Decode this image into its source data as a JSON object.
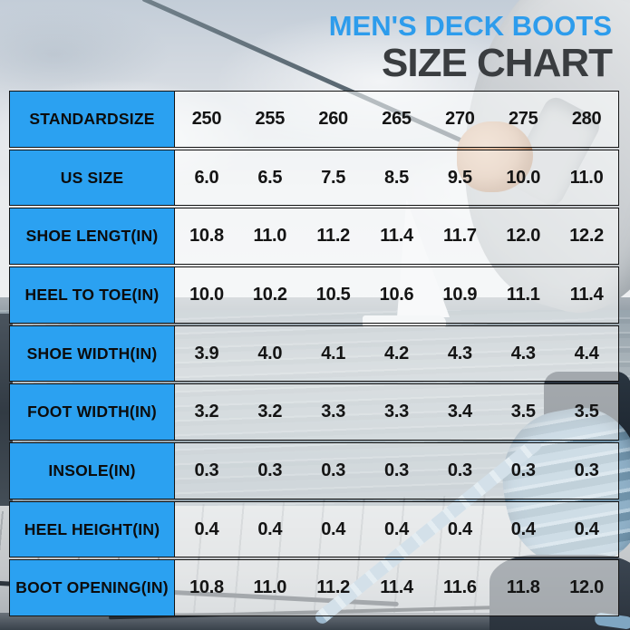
{
  "title": {
    "line1": "MEN'S DECK BOOTS",
    "line2": "SIZE CHART"
  },
  "colors": {
    "accent_blue": "#2BA1F1",
    "title_blue": "#2D9CEC",
    "title_dark": "#3A3D40",
    "row_background": "rgba(252,253,253,0.58)",
    "border": "#151515"
  },
  "table": {
    "rows": [
      {
        "label": "STANDARDSIZE",
        "values": [
          "250",
          "255",
          "260",
          "265",
          "270",
          "275",
          "280"
        ]
      },
      {
        "label": "US SIZE",
        "values": [
          "6.0",
          "6.5",
          "7.5",
          "8.5",
          "9.5",
          "10.0",
          "11.0"
        ]
      },
      {
        "label": "SHOE LENGT(IN)",
        "values": [
          "10.8",
          "11.0",
          "11.2",
          "11.4",
          "11.7",
          "12.0",
          "12.2"
        ]
      },
      {
        "label": "HEEL TO TOE(IN)",
        "values": [
          "10.0",
          "10.2",
          "10.5",
          "10.6",
          "10.9",
          "11.1",
          "11.4"
        ]
      },
      {
        "label": "SHOE WIDTH(IN)",
        "values": [
          "3.9",
          "4.0",
          "4.1",
          "4.2",
          "4.3",
          "4.3",
          "4.4"
        ]
      },
      {
        "label": "FOOT WIDTH(IN)",
        "values": [
          "3.2",
          "3.2",
          "3.3",
          "3.3",
          "3.4",
          "3.5",
          "3.5"
        ]
      },
      {
        "label": "INSOLE(IN)",
        "values": [
          "0.3",
          "0.3",
          "0.3",
          "0.3",
          "0.3",
          "0.3",
          "0.3"
        ]
      },
      {
        "label": "HEEL HEIGHT(IN)",
        "values": [
          "0.4",
          "0.4",
          "0.4",
          "0.4",
          "0.4",
          "0.4",
          "0.4"
        ]
      },
      {
        "label": "BOOT OPENING(IN)",
        "values": [
          "10.8",
          "11.0",
          "11.2",
          "11.4",
          "11.6",
          "11.8",
          "12.0"
        ]
      }
    ]
  },
  "chart_data": {
    "type": "table",
    "title": "MEN'S DECK BOOTS SIZE CHART",
    "categories": [
      "250",
      "255",
      "260",
      "265",
      "270",
      "275",
      "280"
    ],
    "series": [
      {
        "name": "US SIZE",
        "values": [
          6.0,
          6.5,
          7.5,
          8.5,
          9.5,
          10.0,
          11.0
        ]
      },
      {
        "name": "SHOE LENGT(IN)",
        "values": [
          10.8,
          11.0,
          11.2,
          11.4,
          11.7,
          12.0,
          12.2
        ]
      },
      {
        "name": "HEEL TO TOE(IN)",
        "values": [
          10.0,
          10.2,
          10.5,
          10.6,
          10.9,
          11.1,
          11.4
        ]
      },
      {
        "name": "SHOE WIDTH(IN)",
        "values": [
          3.9,
          4.0,
          4.1,
          4.2,
          4.3,
          4.3,
          4.4
        ]
      },
      {
        "name": "FOOT WIDTH(IN)",
        "values": [
          3.2,
          3.2,
          3.3,
          3.3,
          3.4,
          3.5,
          3.5
        ]
      },
      {
        "name": "INSOLE(IN)",
        "values": [
          0.3,
          0.3,
          0.3,
          0.3,
          0.3,
          0.3,
          0.3
        ]
      },
      {
        "name": "HEEL HEIGHT(IN)",
        "values": [
          0.4,
          0.4,
          0.4,
          0.4,
          0.4,
          0.4,
          0.4
        ]
      },
      {
        "name": "BOOT OPENING(IN)",
        "values": [
          10.8,
          11.0,
          11.2,
          11.4,
          11.6,
          11.8,
          12.0
        ]
      }
    ]
  }
}
